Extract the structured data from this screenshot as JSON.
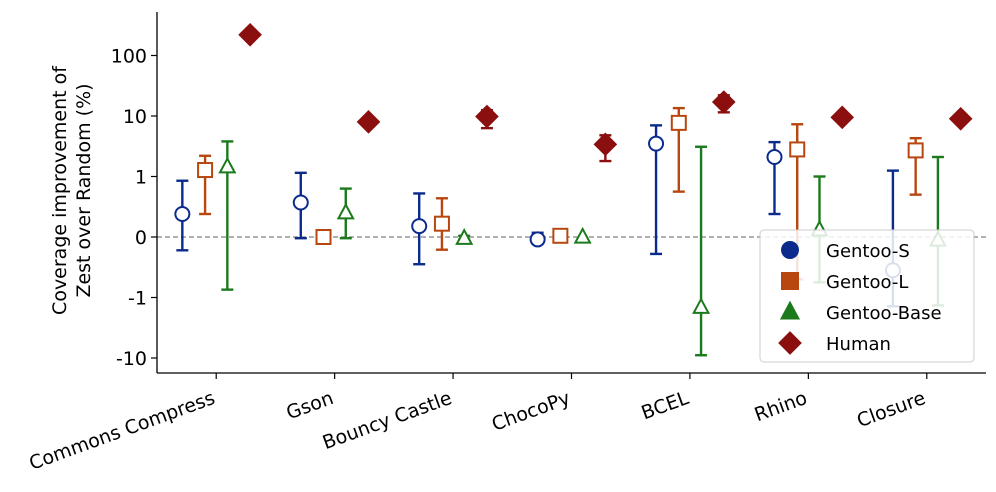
{
  "chart_data": {
    "type": "errorbar-scatter",
    "ylabel": "Coverage improvement of\nZest over Random (%)",
    "yscale": "symlog",
    "yticks": [
      -10,
      -1,
      0,
      1,
      10,
      100
    ],
    "ytick_labels": [
      "-10",
      "-1",
      "0",
      "1",
      "10",
      "100"
    ],
    "categories": [
      "Commons Compress",
      "Gson",
      "Bouncy Castle",
      "ChocoPy",
      "BCEL",
      "Rhino",
      "Closure"
    ],
    "series": [
      {
        "name": "Gentoo-S",
        "marker": "circle",
        "color": "#0a2b8c",
        "points": [
          {
            "value": 0.38,
            "low": -0.22,
            "high": 0.93
          },
          {
            "value": 0.57,
            "low": -0.02,
            "high": 1.15
          },
          {
            "value": 0.18,
            "low": -0.45,
            "high": 0.72
          },
          {
            "value": -0.04,
            "low": -0.11,
            "high": 0.07
          },
          {
            "value": 3.5,
            "low": -0.28,
            "high": 7.0
          },
          {
            "value": 2.1,
            "low": 0.38,
            "high": 3.7
          },
          {
            "value": -0.55,
            "low": -1.4,
            "high": 1.25
          }
        ]
      },
      {
        "name": "Gentoo-L",
        "marker": "square",
        "color": "#b8470f",
        "points": [
          {
            "value": 1.28,
            "low": 0.38,
            "high": 2.2
          },
          {
            "value": 0.0,
            "low": 0.0,
            "high": 0.0
          },
          {
            "value": 0.22,
            "low": -0.21,
            "high": 0.64
          },
          {
            "value": 0.02,
            "low": 0.0,
            "high": 0.04
          },
          {
            "value": 7.7,
            "low": 0.75,
            "high": 13.5
          },
          {
            "value": 2.8,
            "low": -0.7,
            "high": 7.3
          },
          {
            "value": 2.7,
            "low": 0.7,
            "high": 4.3
          }
        ]
      },
      {
        "name": "Gentoo-Base",
        "marker": "triangle",
        "color": "#1b7a1b",
        "points": [
          {
            "value": 1.45,
            "low": -0.87,
            "high": 3.8
          },
          {
            "value": 0.4,
            "low": -0.02,
            "high": 0.8
          },
          {
            "value": -0.02,
            "low": -0.04,
            "high": 0.02
          },
          {
            "value": 0.0,
            "low": 0.0,
            "high": 0.0
          },
          {
            "value": -1.45,
            "low": -9.0,
            "high": 3.1
          },
          {
            "value": 0.12,
            "low": -0.75,
            "high": 1.0
          },
          {
            "value": -0.05,
            "low": -1.35,
            "high": 2.1
          }
        ]
      },
      {
        "name": "Human",
        "marker": "diamond",
        "color": "#8b0f0f",
        "points": [
          {
            "value": 220
          },
          {
            "value": 8.0
          },
          {
            "value": 9.8,
            "low": 6.3,
            "high": 12.5
          },
          {
            "value": 3.4,
            "low": 1.8,
            "high": 4.8
          },
          {
            "value": 17.0,
            "low": 11.5,
            "high": 22.0
          },
          {
            "value": 9.5
          },
          {
            "value": 9.0
          }
        ]
      }
    ],
    "legend_position": "lower-right",
    "reference_line": {
      "y": 0,
      "style": "dashed",
      "color": "#808080"
    }
  }
}
